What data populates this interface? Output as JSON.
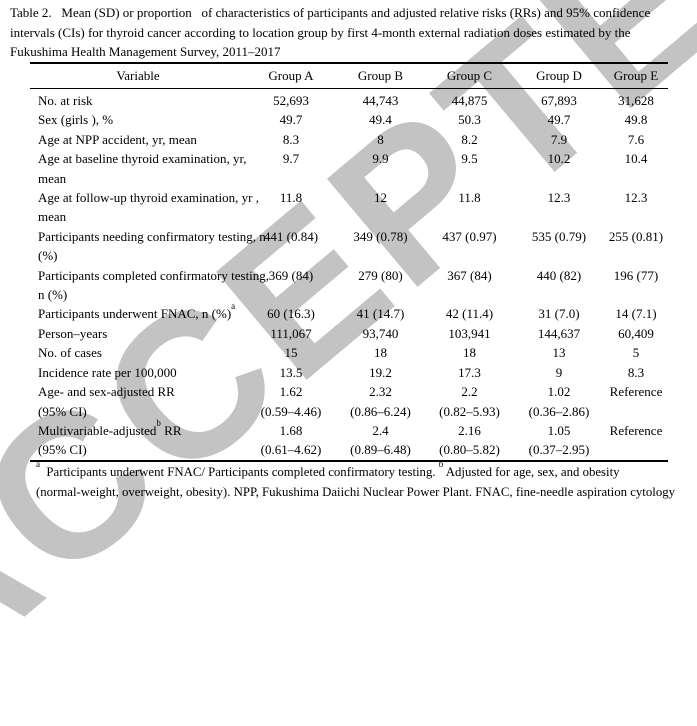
{
  "watermark": {
    "text": "ACCEPTED",
    "color": "#c3c3c3"
  },
  "title": {
    "text": "Table 2.   Mean (SD) or proportion   of characteristics of participants and adjusted relative risks (RRs) and 95% confidence\nintervals (CIs) for thyroid cancer according to location group by first 4-month external radiation doses estimated by the\nFukushima Health Management Survey, 2011–2017"
  },
  "table": {
    "columns": [
      "Variable",
      "Group A",
      "Group B",
      "Group C",
      "Group D",
      "Group E"
    ],
    "rows": [
      {
        "label_parts": [
          {
            "t": "No. at risk"
          }
        ],
        "values": [
          "52,693",
          "44,743",
          "44,875",
          "67,893",
          "31,628"
        ]
      },
      {
        "label_parts": [
          {
            "t": "Sex (girls ), %"
          }
        ],
        "values": [
          "49.7",
          "49.4",
          "50.3",
          "49.7",
          "49.8"
        ]
      },
      {
        "label_parts": [
          {
            "t": "Age at NPP accident, yr, mean"
          }
        ],
        "values": [
          "8.3",
          "8",
          "8.2",
          "7.9",
          "7.6"
        ]
      },
      {
        "label_parts": [
          {
            "t": "Age at baseline thyroid examination, yr,\nmean"
          }
        ],
        "values": [
          "9.7",
          "9.9",
          "9.5",
          "10.2",
          "10.4"
        ]
      },
      {
        "label_parts": [
          {
            "t": "Age at follow-up thyroid examination, yr ,\nmean"
          }
        ],
        "values": [
          "11.8",
          "12",
          "11.8",
          "12.3",
          "12.3"
        ]
      },
      {
        "label_parts": [
          {
            "t": "Participants needing confirmatory testing, n\n(%)"
          }
        ],
        "values": [
          "441 (0.84)",
          "349 (0.78)",
          "437 (0.97)",
          "535 (0.79)",
          "255 (0.81)"
        ]
      },
      {
        "label_parts": [
          {
            "t": "Participants completed confirmatory testing,\nn (%)"
          }
        ],
        "values": [
          "369 (84)",
          "279 (80)",
          "367 (84)",
          "440 (82)",
          "196 (77)"
        ]
      },
      {
        "label_parts": [
          {
            "t": "Participants underwent FNAC, n (%)"
          },
          {
            "t": "a",
            "sup": true
          }
        ],
        "values": [
          "60 (16.3)",
          "41 (14.7)",
          "42 (11.4)",
          "31 (7.0)",
          "14 (7.1)"
        ]
      },
      {
        "label_parts": [
          {
            "t": "Person–years"
          }
        ],
        "values": [
          "111,067",
          "93,740",
          "103,941",
          "144,637",
          "60,409"
        ]
      },
      {
        "label_parts": [
          {
            "t": "No. of cases"
          }
        ],
        "values": [
          "15",
          "18",
          "18",
          "13",
          "5"
        ]
      },
      {
        "label_parts": [
          {
            "t": "Incidence rate per 100,000"
          }
        ],
        "values": [
          "13.5",
          "19.2",
          "17.3",
          "9",
          "8.3"
        ]
      },
      {
        "label_parts": [
          {
            "t": "Age- and sex-adjusted RR\n(95% CI)"
          }
        ],
        "values": [
          "1.62\n(0.59–4.46)",
          "2.32\n(0.86–6.24)",
          "2.2\n(0.82–5.93)",
          "1.02\n(0.36–2.86)",
          "Reference"
        ]
      },
      {
        "label_parts": [
          {
            "t": "Multivariable-adjusted"
          },
          {
            "t": "b",
            "sup": true
          },
          {
            "t": " RR\n(95% CI)"
          }
        ],
        "values": [
          "1.68\n(0.61–4.62)",
          "2.4\n(0.89–6.48)",
          "2.16\n(0.80–5.82)",
          "1.05\n(0.37–2.95)",
          "Reference"
        ]
      }
    ]
  },
  "footnote": {
    "parts": [
      {
        "t": "a",
        "sup": true
      },
      {
        "t": "  Participants underwent FNAC/ Participants completed confirmatory testing. "
      },
      {
        "t": "b",
        "sup": true
      },
      {
        "t": " Adjusted for age, sex, and obesity\n(normal-weight, overweight, obesity). NPP, Fukushima Daiichi Nuclear Power Plant. FNAC, fine-needle aspiration cytology"
      }
    ]
  }
}
